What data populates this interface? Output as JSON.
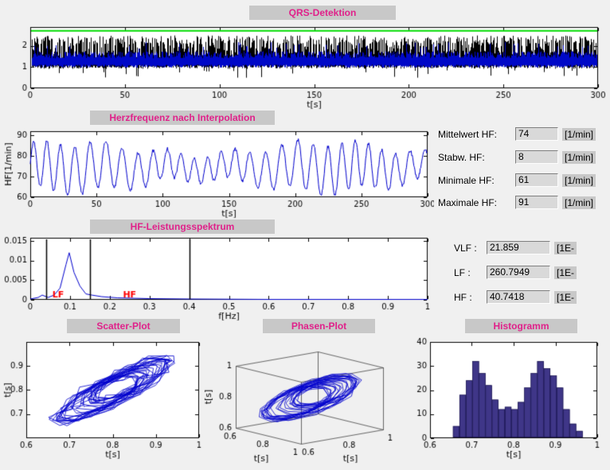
{
  "app": {
    "bg": "#f0f0f0",
    "panel_label_bg": "#c8c8c8",
    "title_color": "#e0218a"
  },
  "titles": {
    "qrs": "QRS-Detektion",
    "hf": "Herzfrequenz nach Interpolation",
    "spectrum": "HF-Leistungsspektrum",
    "scatter": "Scatter-Plot",
    "phase": "Phasen-Plot",
    "hist": "Histogramm"
  },
  "fields": {
    "hf_stats": [
      {
        "label": "Mittelwert HF:",
        "value": "74",
        "unit": "[1/min]"
      },
      {
        "label": "Stabw. HF:",
        "value": "8",
        "unit": "[1/min]"
      },
      {
        "label": "Minimale HF:",
        "value": "61",
        "unit": "[1/min]"
      },
      {
        "label": "Maximale HF:",
        "value": "91",
        "unit": "[1/min]"
      }
    ],
    "power_stats": [
      {
        "label": "VLF :",
        "value": "21.859",
        "unit": "[1E-"
      },
      {
        "label": "LF :",
        "value": "260.7949",
        "unit": "[1E-"
      },
      {
        "label": "HF :",
        "value": "40.7418",
        "unit": "[1E-"
      }
    ]
  },
  "chart_data": [
    {
      "id": "qrs",
      "type": "line",
      "title": "QRS-Detektion",
      "xlabel": "t[s]",
      "xlim": [
        0,
        300
      ],
      "xticks": [
        "0",
        "50",
        "100",
        "150",
        "200",
        "250",
        "300"
      ],
      "ylim": [
        0,
        2.9
      ],
      "yticks": [
        "0",
        "1",
        "2"
      ],
      "series": [
        {
          "name": "ecg-signal",
          "color": "#000000"
        },
        {
          "name": "filtered-signal",
          "color": "#0008c8"
        }
      ],
      "threshold": {
        "name": "detection-threshold",
        "color": "#00dd00",
        "value": 2.72
      }
    },
    {
      "id": "hf",
      "type": "line",
      "title": "Herzfrequenz nach Interpolation",
      "xlabel": "t[s]",
      "ylabel": "HF[1/min]",
      "xlim": [
        0,
        300
      ],
      "xticks": [
        "0",
        "50",
        "100",
        "150",
        "200",
        "250",
        "300"
      ],
      "ylim": [
        60,
        92
      ],
      "yticks": [
        "60",
        "70",
        "80",
        "90"
      ],
      "series": [
        {
          "name": "heart-rate",
          "color": "#0000cd",
          "mean": 74,
          "std": 8,
          "min": 61,
          "max": 91,
          "oscillation_period_s": 11
        }
      ]
    },
    {
      "id": "spectrum",
      "type": "line",
      "title": "HF-Leistungsspektrum",
      "xlabel": "f[Hz]",
      "xlim": [
        0,
        1
      ],
      "xticks": [
        "0",
        "0.1",
        "0.2",
        "0.3",
        "0.4",
        "0.5",
        "0.6",
        "0.7",
        "0.8",
        "0.9",
        "1"
      ],
      "ylim": [
        0,
        0.0158
      ],
      "yticks": [
        "0",
        "0.005",
        "0.01",
        "0.015"
      ],
      "points": [
        [
          0,
          0.0002
        ],
        [
          0.02,
          0.0006
        ],
        [
          0.03,
          0.0012
        ],
        [
          0.045,
          0.0006
        ],
        [
          0.06,
          0.0012
        ],
        [
          0.075,
          0.003
        ],
        [
          0.09,
          0.009
        ],
        [
          0.098,
          0.012
        ],
        [
          0.11,
          0.007
        ],
        [
          0.125,
          0.0035
        ],
        [
          0.14,
          0.0015
        ],
        [
          0.155,
          0.0012
        ],
        [
          0.18,
          0.0008
        ],
        [
          0.22,
          0.0005
        ],
        [
          0.3,
          0.0003
        ],
        [
          0.4,
          0.0002
        ],
        [
          0.6,
          0.0001
        ],
        [
          0.8,
          0.0001
        ],
        [
          1,
          0.0001
        ]
      ],
      "band_lines": [
        0.04,
        0.15,
        0.4
      ],
      "annotations": [
        {
          "text": "LF",
          "x": 0.07,
          "color": "#ff0000"
        },
        {
          "text": "HF",
          "x": 0.25,
          "color": "#ff0000"
        }
      ]
    },
    {
      "id": "scatter",
      "type": "scatter",
      "title": "Scatter-Plot",
      "xlabel": "t[s]",
      "ylabel": "t[s]",
      "xlim": [
        0.6,
        1
      ],
      "ylim": [
        0.6,
        1
      ],
      "xticks": [
        "0.6",
        "0.7",
        "0.8",
        "0.9",
        "1"
      ],
      "yticks": [
        "0.7",
        "0.8",
        "0.9"
      ],
      "series": [
        {
          "name": "poincare-rr",
          "color": "#0000cd",
          "value_range_s": [
            0.64,
            0.98
          ]
        }
      ]
    },
    {
      "id": "phase",
      "type": "line3d",
      "title": "Phasen-Plot",
      "xlabel": "t[s]",
      "ylabel": "t[s]",
      "zlabel": "t[s]",
      "lim": [
        0.6,
        1
      ],
      "ticks": [
        "0.6",
        "0.8",
        "1"
      ],
      "series": [
        {
          "name": "phase-trajectory",
          "color": "#0000cd"
        }
      ]
    },
    {
      "id": "hist",
      "type": "bar",
      "title": "Histogramm",
      "xlabel": "t[s]",
      "xlim": [
        0.6,
        1
      ],
      "xticks": [
        "0.6",
        "0.7",
        "0.8",
        "0.9",
        "1"
      ],
      "ylim": [
        0,
        40
      ],
      "yticks": [
        "0",
        "10",
        "20",
        "30",
        "40"
      ],
      "bar_color": "#3f3688",
      "bin_start": 0.655,
      "bin_width": 0.0155,
      "counts": [
        5,
        18,
        24,
        32,
        27,
        22,
        16,
        12,
        13,
        12,
        15,
        21,
        27,
        32,
        29,
        26,
        21,
        12,
        6,
        3
      ]
    }
  ]
}
